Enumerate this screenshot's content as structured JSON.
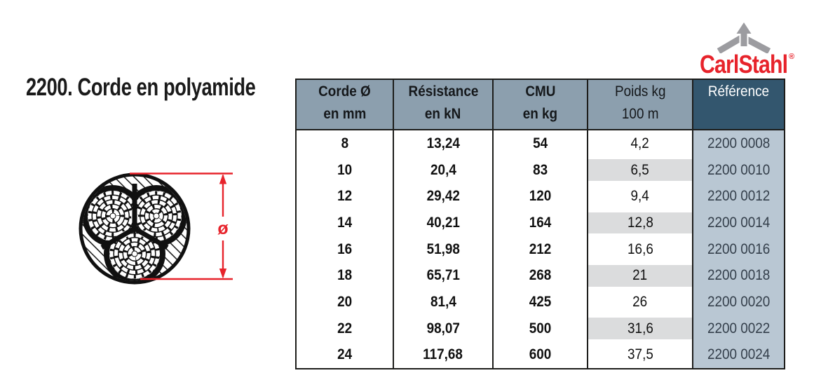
{
  "title": "2200. Corde en polyamide",
  "logo": {
    "brand": "CarlStahl",
    "registered": "®",
    "brand_color": "#e2232b",
    "icon_color": "#9c9ca0"
  },
  "diagram": {
    "diameter_symbol": "ø",
    "dimension_color": "#e7232b"
  },
  "table": {
    "headers": [
      {
        "line1": "Corde Ø",
        "line2": "en mm"
      },
      {
        "line1": "Résistance",
        "line2": "en kN"
      },
      {
        "line1": "CMU",
        "line2": "en kg"
      },
      {
        "line1": "Poids kg",
        "line2": "100 m"
      },
      {
        "line1": "Référence",
        "line2": ""
      }
    ],
    "rows": [
      [
        "8",
        "13,24",
        "54",
        "4,2",
        "2200 0008"
      ],
      [
        "10",
        "20,4",
        "83",
        "6,5",
        "2200 0010"
      ],
      [
        "12",
        "29,42",
        "120",
        "9,4",
        "2200 0012"
      ],
      [
        "14",
        "40,21",
        "164",
        "12,8",
        "2200 0014"
      ],
      [
        "16",
        "51,98",
        "212",
        "16,6",
        "2200 0016"
      ],
      [
        "18",
        "65,71",
        "268",
        "21",
        "2200 0018"
      ],
      [
        "20",
        "81,4",
        "425",
        "26",
        "2200 0020"
      ],
      [
        "22",
        "98,07",
        "500",
        "31,6",
        "2200 0022"
      ],
      [
        "24",
        "117,68",
        "600",
        "37,5",
        "2200 0024"
      ]
    ],
    "colors": {
      "header_bg": "#8c9fae",
      "header_ref_bg": "#33566e",
      "ref_col_bg": "#b9c7d3",
      "zebra": "#dbdcdd",
      "border": "#1d1d1b",
      "ref_text": "#343f4b",
      "red": "#e7232b",
      "gray": "#9c9ca0"
    }
  }
}
